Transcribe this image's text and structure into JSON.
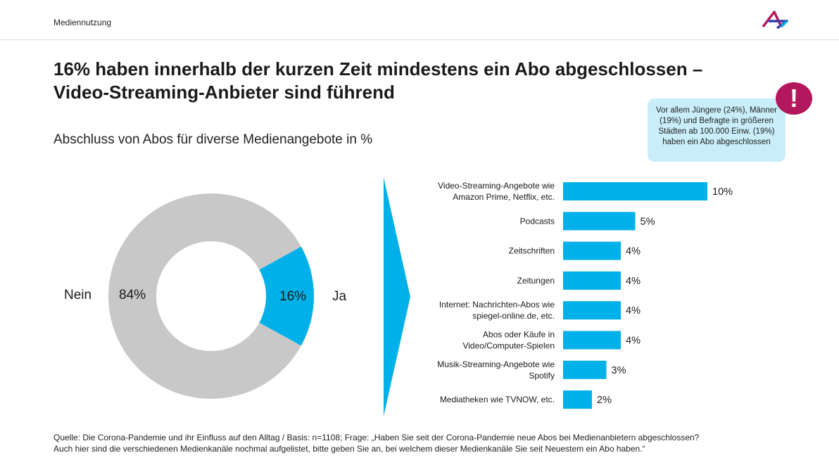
{
  "header": {
    "section": "Mediennutzung"
  },
  "title_line1": "16% haben innerhalb der kurzen Zeit mindestens ein Abo abgeschlossen –",
  "title_line2": "Video-Streaming-Anbieter sind führend",
  "subtitle": "Abschluss von Abos für diverse Medienangebote in %",
  "callout": {
    "icon": "exclamation-icon",
    "text": "Vor allem Jüngere (24%), Männer (19%) und Befragte in größeren Städten ab 100.000 Einw. (19%) haben ein Abo abgeschlossen"
  },
  "colors": {
    "accent": "#00b0e8",
    "grey": "#c8c8c8",
    "alert": "#b3185c",
    "callout_bg": "#c9eef9"
  },
  "chart_data": [
    {
      "type": "pie",
      "categories": [
        "Nein",
        "Ja"
      ],
      "values": [
        84,
        16
      ],
      "value_labels": [
        "84%",
        "16%"
      ]
    },
    {
      "type": "bar",
      "orientation": "horizontal",
      "categories": [
        "Video-Streaming-Angebote wie Amazon Prime, Netflix, etc.",
        "Podcasts",
        "Zeitschriften",
        "Zeitungen",
        "Internet: Nachrichten-Abos wie spiegel-online.de, etc.",
        "Abos oder Käufe in Video/Computer-Spielen",
        "Musik-Streaming-Angebote wie Spotify",
        "Mediatheken wie TVNOW, etc."
      ],
      "category_lines": [
        [
          "Video-Streaming-Angebote wie",
          "Amazon Prime, Netflix, etc."
        ],
        [
          "Podcasts"
        ],
        [
          "Zeitschriften"
        ],
        [
          "Zeitungen"
        ],
        [
          "Internet: Nachrichten-Abos wie",
          "spiegel-online.de, etc."
        ],
        [
          "Abos oder Käufe in",
          "Video/Computer-Spielen"
        ],
        [
          "Musik-Streaming-Angebote wie",
          "Spotify"
        ],
        [
          "Mediatheken wie TVNOW, etc."
        ]
      ],
      "values": [
        10,
        5,
        4,
        4,
        4,
        4,
        3,
        2
      ],
      "value_labels": [
        "10%",
        "5%",
        "4%",
        "4%",
        "4%",
        "4%",
        "3%",
        "2%"
      ]
    }
  ],
  "footer": {
    "line1": "Quelle: Die Corona-Pandemie  und ihr Einfluss auf den Alltag / Basis: n=1108;  Frage: „Haben  Sie seit der Corona-Pandemie  neue Abos bei Medienanbietern  abgeschlossen?",
    "line2": "Auch  hier sind die verschiedenen  Medienkanäle  nochmal  aufgelistet, bitte geben Sie an, bei welchem dieser Medienkanäle  Sie seit Neuestem ein Abo  haben.“"
  }
}
